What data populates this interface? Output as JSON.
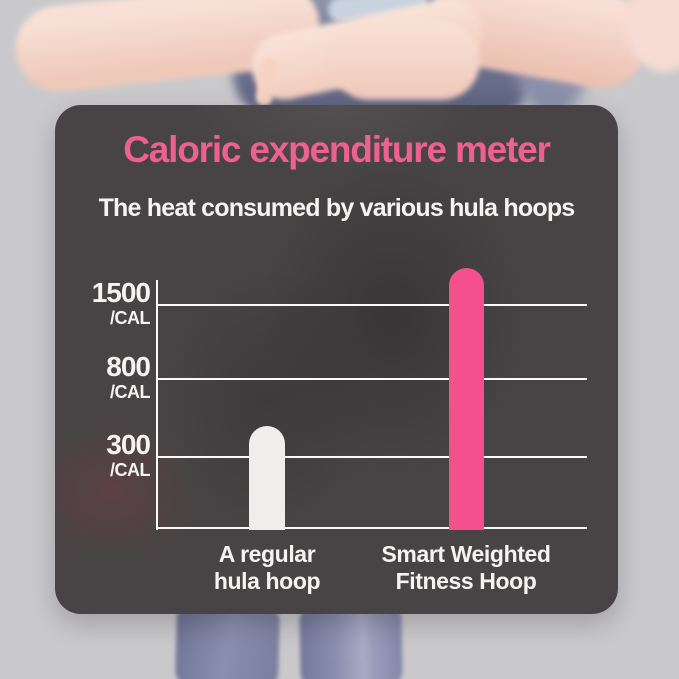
{
  "page": {
    "background_color": "#C9C9CC"
  },
  "background_photo": {
    "description": "woman-torso-arms-crossed-with-leggings",
    "skin_color": "#F4D6CA",
    "sports_top_color": "#6E7390",
    "leggings_color": "#8186A8"
  },
  "panel": {
    "background_color": "#484445",
    "title": "Caloric expenditure meter",
    "title_color": "#EE6090",
    "subtitle": "The heat consumed by various hula hoops",
    "subtitle_color": "#F5F4F2"
  },
  "chart_data": {
    "type": "bar",
    "title": "Caloric expenditure meter",
    "subtitle": "The heat consumed by various hula hoops",
    "categories": [
      "A regular hula hoop",
      "Smart Weighted Fitness Hoop"
    ],
    "category_lines": [
      [
        "A regular",
        "hula hoop"
      ],
      [
        "Smart Weighted",
        "Fitness Hoop"
      ]
    ],
    "values": [
      500,
      1850
    ],
    "unit": "CAL",
    "yticks": [
      {
        "label": "1500",
        "unit_label": "/CAL",
        "value": 1500
      },
      {
        "label": "800",
        "unit_label": "/CAL",
        "value": 800
      },
      {
        "label": "300",
        "unit_label": "/CAL",
        "value": 300
      }
    ],
    "ylim": [
      0,
      1900
    ],
    "grid": true,
    "legend_position": "none",
    "bar_colors": [
      "#F0EEEC",
      "#F4508E"
    ],
    "axis_color": "#FAFAFA",
    "tick_text_color": "#F5F4F2",
    "category_text_color": "#F5F4F2"
  }
}
